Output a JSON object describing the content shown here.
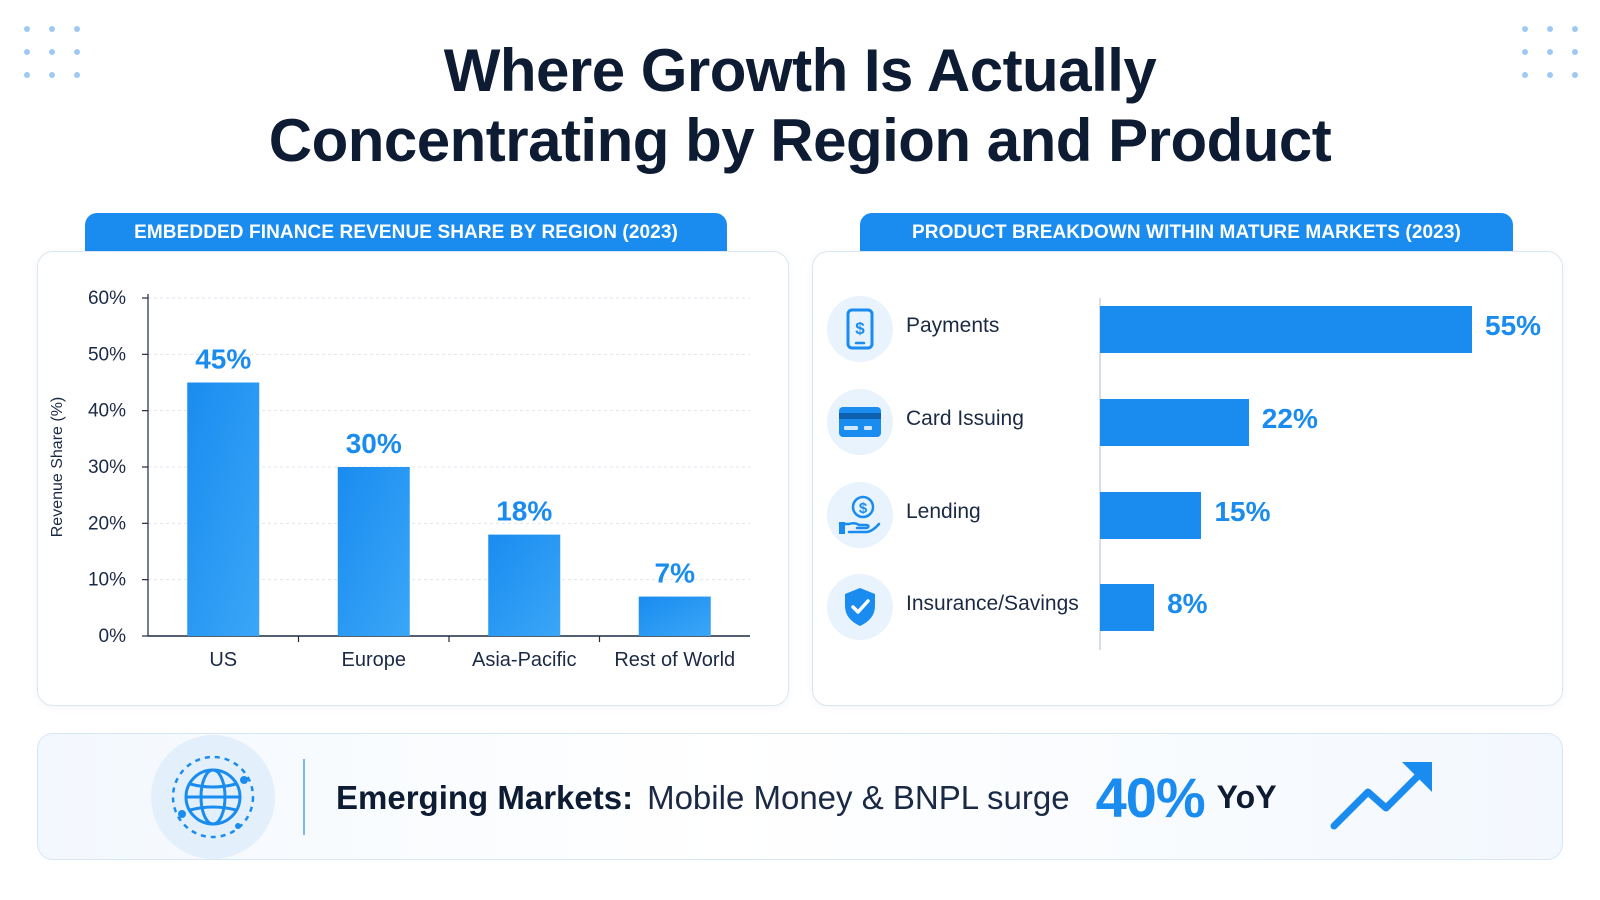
{
  "title": {
    "line1": "Where Growth Is Actually",
    "line2": "Concentrating by Region and Product"
  },
  "chart_data": [
    {
      "type": "bar",
      "title": "EMBEDDED FINANCE REVENUE SHARE BY REGION (2023)",
      "categories": [
        "US",
        "Europe",
        "Asia-Pacific",
        "Rest of World"
      ],
      "values": [
        45,
        30,
        18,
        7
      ],
      "value_labels": [
        "45%",
        "30%",
        "18%",
        "7%"
      ],
      "ylabel": "Revenue Share (%)",
      "ylim": [
        0,
        60
      ],
      "yticks": [
        0,
        10,
        20,
        30,
        40,
        50,
        60
      ],
      "ytick_labels": [
        "0%",
        "10%",
        "20%",
        "30%",
        "40%",
        "50%",
        "60%"
      ],
      "grid": true,
      "color": "#1a8cf0"
    },
    {
      "type": "bar",
      "orientation": "horizontal",
      "title": "PRODUCT BREAKDOWN WITHIN MATURE MARKETS (2023)",
      "categories": [
        "Payments",
        "Card Issuing",
        "Lending",
        "Insurance/Savings"
      ],
      "values": [
        55,
        22,
        15,
        8
      ],
      "value_labels": [
        "55%",
        "22%",
        "15%",
        "8%"
      ],
      "icons": [
        "mobile-payment-icon",
        "credit-card-icon",
        "lending-hand-icon",
        "shield-check-icon"
      ],
      "color": "#1a8cf0"
    }
  ],
  "banner": {
    "label": "Emerging Markets:",
    "description": "Mobile Money & BNPL surge",
    "percent": "40%",
    "suffix": "YoY",
    "icon": "globe-icon",
    "trend_icon": "trend-up-arrow-icon"
  },
  "colors": {
    "accent": "#1a8cf0",
    "text": "#0d1b33"
  }
}
